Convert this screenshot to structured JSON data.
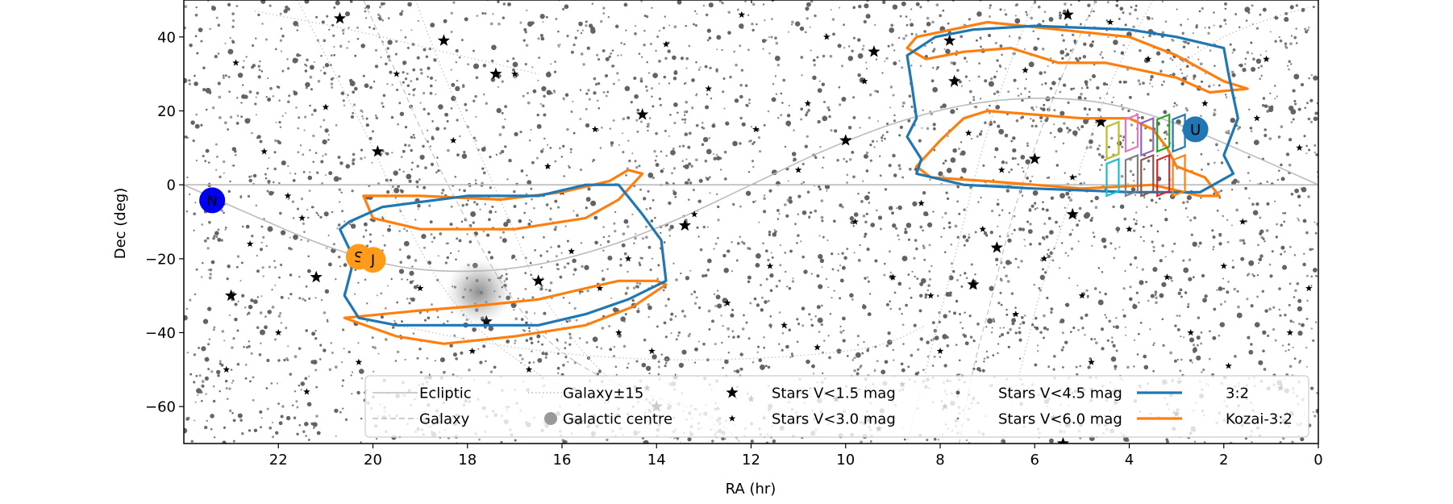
{
  "chart_data": {
    "type": "scatter",
    "title": "",
    "xlabel": "RA (hr)",
    "ylabel": "Dec (deg)",
    "xlim": [
      24,
      0
    ],
    "ylim": [
      -70,
      50
    ],
    "x_ticks": [
      22,
      20,
      18,
      16,
      14,
      12,
      10,
      8,
      6,
      4,
      2,
      0
    ],
    "y_ticks": [
      40,
      20,
      0,
      -20,
      -40,
      -60
    ],
    "x_tick_labels": [
      "22",
      "20",
      "18",
      "16",
      "14",
      "12",
      "10",
      "8",
      "6",
      "4",
      "2",
      "0"
    ],
    "y_tick_labels": [
      "40",
      "20",
      "0",
      "−20",
      "−40",
      "−60"
    ],
    "grid": false,
    "legend_position": "lower-center",
    "legend": [
      {
        "label": "Ecliptic",
        "symbol": "solid-line",
        "color": "#bbbbbb"
      },
      {
        "label": "Galaxy±15",
        "symbol": "dotted-line",
        "color": "#bbbbbb"
      },
      {
        "label": "Stars V<1.5 mag",
        "symbol": "star-large",
        "color": "#000000"
      },
      {
        "label": "Stars V<4.5 mag",
        "symbol": "dot-small",
        "color": "#555555"
      },
      {
        "label": "3:2",
        "symbol": "solid-line",
        "color": "#1f77b4"
      },
      {
        "label": "Galaxy",
        "symbol": "dashed-line",
        "color": "#bbbbbb"
      },
      {
        "label": "Galactic centre",
        "symbol": "disc",
        "color": "#999999"
      },
      {
        "label": "Stars V<3.0 mag",
        "symbol": "star-small",
        "color": "#000000"
      },
      {
        "label": "Stars V<6.0 mag",
        "symbol": "dot-tiny",
        "color": "#777777"
      },
      {
        "label": "Kozai-3:2",
        "symbol": "solid-line",
        "color": "#ff7f0e"
      }
    ],
    "ecliptic": [
      [
        24,
        0
      ],
      [
        22.5,
        -8.5
      ],
      [
        21,
        -16.5
      ],
      [
        19.5,
        -22
      ],
      [
        18,
        -23.4
      ],
      [
        16.5,
        -21.5
      ],
      [
        15,
        -16.5
      ],
      [
        13.5,
        -9
      ],
      [
        12,
        0
      ],
      [
        10.5,
        9
      ],
      [
        9,
        16.5
      ],
      [
        7.5,
        21.5
      ],
      [
        6,
        23.4
      ],
      [
        4.5,
        22
      ],
      [
        3,
        16.5
      ],
      [
        1.5,
        8.5
      ],
      [
        0,
        0
      ]
    ],
    "galaxy_band": {
      "center": [
        [
          20.2,
          50
        ],
        [
          19.5,
          30
        ],
        [
          18.8,
          10
        ],
        [
          18.0,
          -10
        ],
        [
          17.2,
          -28
        ],
        [
          16.3,
          -42
        ],
        [
          15.0,
          -53
        ],
        [
          13.0,
          -62
        ],
        [
          12.2,
          -70
        ]
      ],
      "upper": [
        [
          19.1,
          50
        ],
        [
          18.5,
          30
        ],
        [
          17.8,
          10
        ],
        [
          17.1,
          -10
        ],
        [
          16.4,
          -30
        ],
        [
          15.2,
          -50
        ],
        [
          13.8,
          -62
        ]
      ],
      "lower": [
        [
          21.6,
          50
        ],
        [
          20.8,
          30
        ],
        [
          20.0,
          10
        ],
        [
          19.3,
          -10
        ],
        [
          18.5,
          -28
        ],
        [
          17.5,
          -42
        ],
        [
          16.0,
          -55
        ],
        [
          14.5,
          -64
        ],
        [
          13.4,
          -70
        ]
      ],
      "second_center": [
        [
          4.7,
          50
        ],
        [
          5.4,
          30
        ],
        [
          6.0,
          10
        ],
        [
          6.5,
          -10
        ],
        [
          6.9,
          -30
        ],
        [
          7.3,
          -50
        ],
        [
          7.6,
          -70
        ]
      ],
      "second_upper": [
        [
          6.0,
          50
        ],
        [
          6.6,
          30
        ],
        [
          7.1,
          10
        ],
        [
          7.5,
          -10
        ],
        [
          7.9,
          -30
        ],
        [
          8.3,
          -50
        ],
        [
          8.7,
          -70
        ]
      ],
      "second_lower": [
        [
          3.5,
          50
        ],
        [
          4.3,
          30
        ],
        [
          4.9,
          10
        ],
        [
          5.4,
          -10
        ],
        [
          5.9,
          -30
        ],
        [
          6.3,
          -50
        ],
        [
          6.7,
          -70
        ]
      ],
      "lower_arc": [
        [
          19.5,
          -38
        ],
        [
          17.0,
          -44
        ],
        [
          14.5,
          -47
        ],
        [
          12.0,
          -47
        ],
        [
          9.5,
          -44
        ],
        [
          8.3,
          -38
        ]
      ],
      "upper_arc": [
        [
          22.5,
          47
        ],
        [
          20.5,
          42
        ],
        [
          18.5,
          36
        ],
        [
          16.5,
          30
        ]
      ],
      "upper_arc_right": [
        [
          3.0,
          32
        ],
        [
          2.0,
          40
        ],
        [
          1.0,
          45
        ],
        [
          0.2,
          48
        ]
      ]
    },
    "galactic_centre": {
      "ra": 17.76,
      "dec": -29.0
    },
    "planets": [
      {
        "label": "N",
        "ra": 23.4,
        "dec": -4.2,
        "color": "#0000ee"
      },
      {
        "label": "S",
        "ra": 20.3,
        "dec": -19.5,
        "color": "#ff9b1a"
      },
      {
        "label": "J",
        "ra": 20.0,
        "dec": -20.3,
        "color": "#ff9b1a"
      },
      {
        "label": "U",
        "ra": 2.6,
        "dec": 15.0,
        "color": "#1f77b4"
      }
    ],
    "series": [
      {
        "name": "3:2",
        "color": "#1f77b4",
        "polygons": [
          [
            [
              20.5,
              -10
            ],
            [
              19.8,
              -6
            ],
            [
              18.0,
              -3
            ],
            [
              16.5,
              -3
            ],
            [
              15.5,
              0
            ],
            [
              14.8,
              0
            ],
            [
              14.3,
              -8
            ],
            [
              13.9,
              -15
            ],
            [
              13.8,
              -26
            ],
            [
              14.6,
              -31
            ],
            [
              15.5,
              -35
            ],
            [
              16.5,
              -38
            ],
            [
              18.0,
              -38
            ],
            [
              19.5,
              -38
            ],
            [
              20.3,
              -36
            ],
            [
              20.6,
              -30
            ],
            [
              20.4,
              -20
            ],
            [
              20.7,
              -12
            ],
            [
              20.5,
              -10
            ]
          ],
          [
            [
              8.7,
              35
            ],
            [
              8.1,
              40
            ],
            [
              7.3,
              42
            ],
            [
              6.0,
              43
            ],
            [
              4.0,
              42
            ],
            [
              3.0,
              40
            ],
            [
              2.0,
              37
            ],
            [
              1.9,
              30
            ],
            [
              1.7,
              18
            ],
            [
              2.0,
              8
            ],
            [
              1.8,
              3
            ],
            [
              2.5,
              -2
            ],
            [
              4.0,
              -2
            ],
            [
              6.0,
              -1
            ],
            [
              7.5,
              0
            ],
            [
              8.5,
              3
            ],
            [
              8.4,
              7
            ],
            [
              8.7,
              13
            ],
            [
              8.5,
              18
            ],
            [
              8.6,
              27
            ],
            [
              8.7,
              35
            ]
          ]
        ]
      },
      {
        "name": "Kozai-3:2",
        "color": "#ff7f0e",
        "polygons": [
          [
            [
              20.2,
              -3
            ],
            [
              19.0,
              -3
            ],
            [
              17.3,
              -4
            ],
            [
              16.0,
              -2
            ],
            [
              15.0,
              1
            ],
            [
              14.6,
              4
            ],
            [
              14.3,
              3
            ],
            [
              14.8,
              -4
            ],
            [
              15.5,
              -9
            ],
            [
              17.0,
              -12
            ],
            [
              19.0,
              -12
            ],
            [
              20.0,
              -9
            ],
            [
              20.2,
              -3
            ]
          ],
          [
            [
              20.6,
              -36
            ],
            [
              19.0,
              -34
            ],
            [
              18.0,
              -33
            ],
            [
              16.5,
              -31
            ],
            [
              15.5,
              -28
            ],
            [
              14.8,
              -26
            ],
            [
              14.0,
              -26
            ],
            [
              13.8,
              -27
            ],
            [
              14.5,
              -33
            ],
            [
              15.5,
              -38
            ],
            [
              17.0,
              -41
            ],
            [
              18.5,
              -43
            ],
            [
              19.5,
              -41
            ],
            [
              20.6,
              -36
            ]
          ],
          [
            [
              8.7,
              37
            ],
            [
              8.3,
              34
            ],
            [
              7.5,
              36
            ],
            [
              6.5,
              37
            ],
            [
              5.5,
              33
            ],
            [
              4.5,
              33
            ],
            [
              3.0,
              29
            ],
            [
              2.3,
              25
            ],
            [
              1.5,
              26
            ],
            [
              2.0,
              28
            ],
            [
              3.0,
              35
            ],
            [
              4.0,
              40
            ],
            [
              5.5,
              42
            ],
            [
              7.0,
              44
            ],
            [
              8.5,
              40
            ],
            [
              8.7,
              37
            ]
          ],
          [
            [
              8.5,
              5
            ],
            [
              8.2,
              2
            ],
            [
              7.0,
              1
            ],
            [
              6.0,
              0
            ],
            [
              5.0,
              -1
            ],
            [
              3.5,
              0
            ],
            [
              2.5,
              -3
            ],
            [
              2.1,
              -3
            ],
            [
              2.4,
              2
            ],
            [
              3.0,
              5
            ],
            [
              3.2,
              10
            ],
            [
              3.5,
              15
            ],
            [
              4.0,
              18
            ],
            [
              5.0,
              18
            ],
            [
              6.0,
              19
            ],
            [
              7.0,
              20
            ],
            [
              7.5,
              18
            ],
            [
              8.0,
              12
            ],
            [
              8.5,
              5
            ]
          ]
        ]
      }
    ],
    "survey_fields": [
      {
        "color": "#bcbd22",
        "ra": 4.35,
        "dec_top": 17,
        "dec_bottom": 7
      },
      {
        "color": "#17becf",
        "ra": 4.35,
        "dec_top": 7,
        "dec_bottom": -3
      },
      {
        "color": "#e377c2",
        "ra": 3.95,
        "dec_top": 19,
        "dec_bottom": 9
      },
      {
        "color": "#7f7f7f",
        "ra": 3.95,
        "dec_top": 8,
        "dec_bottom": -3
      },
      {
        "color": "#9467bd",
        "ra": 3.62,
        "dec_top": 18,
        "dec_bottom": 8
      },
      {
        "color": "#8c564b",
        "ra": 3.62,
        "dec_top": 8,
        "dec_bottom": -3
      },
      {
        "color": "#2ca02c",
        "ra": 3.28,
        "dec_top": 19,
        "dec_bottom": 9
      },
      {
        "color": "#d62728",
        "ra": 3.28,
        "dec_top": 8,
        "dec_bottom": -3
      },
      {
        "color": "#1f77b4",
        "ra": 2.95,
        "dec_top": 19,
        "dec_bottom": 9
      },
      {
        "color": "#ff7f0e",
        "ra": 2.95,
        "dec_top": 8,
        "dec_bottom": -3
      }
    ],
    "bright_stars": [
      [
        20.7,
        45
      ],
      [
        18.5,
        39
      ],
      [
        17.4,
        30
      ],
      [
        14.3,
        19
      ],
      [
        9.4,
        36
      ],
      [
        10.0,
        12
      ],
      [
        7.8,
        39
      ],
      [
        7.7,
        28
      ],
      [
        5.3,
        46
      ],
      [
        6.0,
        7
      ],
      [
        4.6,
        17
      ],
      [
        2.6,
        14
      ],
      [
        13.4,
        -11
      ],
      [
        19.9,
        9
      ],
      [
        16.5,
        -26
      ],
      [
        23.0,
        -30
      ],
      [
        17.6,
        -37
      ],
      [
        6.8,
        -17
      ],
      [
        7.3,
        -27
      ],
      [
        5.2,
        -8
      ],
      [
        5.4,
        -70
      ],
      [
        21.2,
        -25
      ],
      [
        14.0,
        -60
      ]
    ],
    "medium_stars": [
      [
        22.3,
        9
      ],
      [
        22.6,
        -16
      ],
      [
        21.5,
        -9
      ],
      [
        21.8,
        -3
      ],
      [
        21.0,
        21
      ],
      [
        19.5,
        30
      ],
      [
        18.3,
        12
      ],
      [
        17.0,
        30
      ],
      [
        16.3,
        5
      ],
      [
        16.0,
        -2
      ],
      [
        15.3,
        15
      ],
      [
        15.2,
        -28
      ],
      [
        14.8,
        -40
      ],
      [
        14.1,
        -45
      ],
      [
        13.2,
        -8
      ],
      [
        12.5,
        -32
      ],
      [
        12.0,
        -58
      ],
      [
        11.3,
        -38
      ],
      [
        11.0,
        4
      ],
      [
        10.8,
        22
      ],
      [
        10.4,
        40
      ],
      [
        9.8,
        -10
      ],
      [
        9.0,
        -25
      ],
      [
        8.4,
        -5
      ],
      [
        8.0,
        -45
      ],
      [
        7.4,
        14
      ],
      [
        7.1,
        -12
      ],
      [
        6.4,
        -35
      ],
      [
        6.2,
        31
      ],
      [
        5.8,
        -20
      ],
      [
        5.2,
        2
      ],
      [
        4.8,
        -48
      ],
      [
        4.0,
        -12
      ],
      [
        3.6,
        34
      ],
      [
        3.2,
        -25
      ],
      [
        2.7,
        -40
      ],
      [
        2.4,
        22
      ],
      [
        1.6,
        -10
      ],
      [
        1.1,
        34
      ],
      [
        0.8,
        -55
      ],
      [
        0.4,
        10
      ],
      [
        23.1,
        -50
      ],
      [
        22.9,
        33
      ],
      [
        21.4,
        -56
      ],
      [
        20.3,
        -48
      ],
      [
        18.8,
        -52
      ],
      [
        16.7,
        -50
      ],
      [
        15.6,
        -64
      ],
      [
        13.6,
        -52
      ],
      [
        12.9,
        26
      ],
      [
        12.2,
        46
      ],
      [
        11.6,
        -22
      ],
      [
        10.2,
        -58
      ],
      [
        9.3,
        -66
      ],
      [
        8.8,
        -54
      ],
      [
        7.9,
        -60
      ],
      [
        5.6,
        -63
      ],
      [
        4.3,
        -56
      ],
      [
        3.0,
        -62
      ],
      [
        1.9,
        -49
      ],
      [
        0.6,
        -40
      ],
      [
        22.0,
        -40
      ],
      [
        19.0,
        -28
      ],
      [
        17.9,
        -45
      ],
      [
        15.8,
        -18
      ],
      [
        14.6,
        -20
      ],
      [
        14.2,
        -55
      ],
      [
        13.8,
        38
      ],
      [
        11.9,
        15
      ],
      [
        10.6,
        -44
      ],
      [
        9.6,
        28
      ],
      [
        8.2,
        -30
      ],
      [
        6.7,
        4
      ],
      [
        5.0,
        -30
      ],
      [
        4.4,
        44
      ],
      [
        2.0,
        -22
      ],
      [
        1.3,
        18
      ],
      [
        0.2,
        -28
      ]
    ]
  }
}
